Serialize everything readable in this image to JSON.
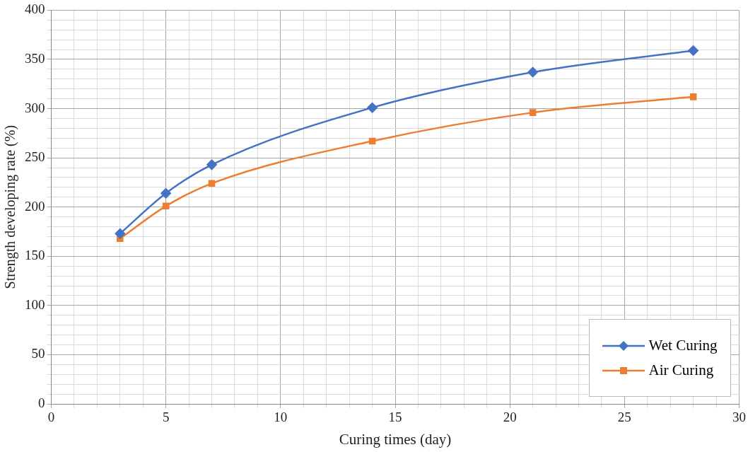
{
  "chart_data": {
    "type": "line",
    "xlabel": "Curing times (day)",
    "ylabel": "Strength developing rate (%)",
    "x": [
      3,
      5,
      7,
      14,
      21,
      28
    ],
    "series": [
      {
        "name": "Wet Curing",
        "color": "#4472c4",
        "values": [
          173,
          214,
          243,
          301,
          337,
          359
        ],
        "marker": "diamond"
      },
      {
        "name": "Air Curing",
        "color": "#ed7d31",
        "values": [
          168,
          201,
          224,
          267,
          296,
          312
        ],
        "marker": "square"
      }
    ],
    "xlim": [
      0,
      30
    ],
    "ylim": [
      0,
      400
    ],
    "xticks": [
      0,
      {
        "value": 1,
        "label": null
      },
      {
        "value": 2,
        "label": null
      },
      {
        "value": 3,
        "label": null
      },
      {
        "value": 4,
        "label": null
      },
      5,
      {
        "value": 6,
        "label": null
      },
      {
        "value": 7,
        "label": null
      },
      {
        "value": 8,
        "label": null
      },
      {
        "value": 9,
        "label": null
      },
      10,
      {
        "value": 11,
        "label": null
      },
      {
        "value": 12,
        "label": null
      },
      {
        "value": 13,
        "label": null
      },
      {
        "value": 14,
        "label": null
      },
      15,
      {
        "value": 16,
        "label": null
      },
      {
        "value": 17,
        "label": null
      },
      {
        "value": 18,
        "label": null
      },
      {
        "value": 19,
        "label": null
      },
      20,
      {
        "value": 21,
        "label": null
      },
      {
        "value": 22,
        "label": null
      },
      {
        "value": 23,
        "label": null
      },
      {
        "value": 24,
        "label": null
      },
      25,
      {
        "value": 26,
        "label": null
      },
      {
        "value": 27,
        "label": null
      },
      {
        "value": 28,
        "label": null
      },
      {
        "value": 29,
        "label": null
      },
      30
    ],
    "yticks": [
      0,
      {
        "value": 10,
        "label": null
      },
      {
        "value": 20,
        "label": null
      },
      {
        "value": 30,
        "label": null
      },
      {
        "value": 40,
        "label": null
      },
      50,
      {
        "value": 60,
        "label": null
      },
      {
        "value": 70,
        "label": null
      },
      {
        "value": 80,
        "label": null
      },
      {
        "value": 90,
        "label": null
      },
      100,
      {
        "value": 110,
        "label": null
      },
      {
        "value": 120,
        "label": null
      },
      {
        "value": 130,
        "label": null
      },
      {
        "value": 140,
        "label": null
      },
      150,
      {
        "value": 160,
        "label": null
      },
      {
        "value": 170,
        "label": null
      },
      {
        "value": 180,
        "label": null
      },
      {
        "value": 190,
        "label": null
      },
      200,
      {
        "value": 210,
        "label": null
      },
      {
        "value": 220,
        "label": null
      },
      {
        "value": 230,
        "label": null
      },
      {
        "value": 240,
        "label": null
      },
      250,
      {
        "value": 260,
        "label": null
      },
      {
        "value": 270,
        "label": null
      },
      {
        "value": 280,
        "label": null
      },
      {
        "value": 290,
        "label": null
      },
      300,
      {
        "value": 310,
        "label": null
      },
      {
        "value": 320,
        "label": null
      },
      {
        "value": 330,
        "label": null
      },
      {
        "value": 340,
        "label": null
      },
      350,
      {
        "value": 360,
        "label": null
      },
      {
        "value": 370,
        "label": null
      },
      {
        "value": 380,
        "label": null
      },
      {
        "value": 390,
        "label": null
      },
      400
    ],
    "grid": true,
    "legend": "bottom right",
    "line_style": "solid"
  }
}
